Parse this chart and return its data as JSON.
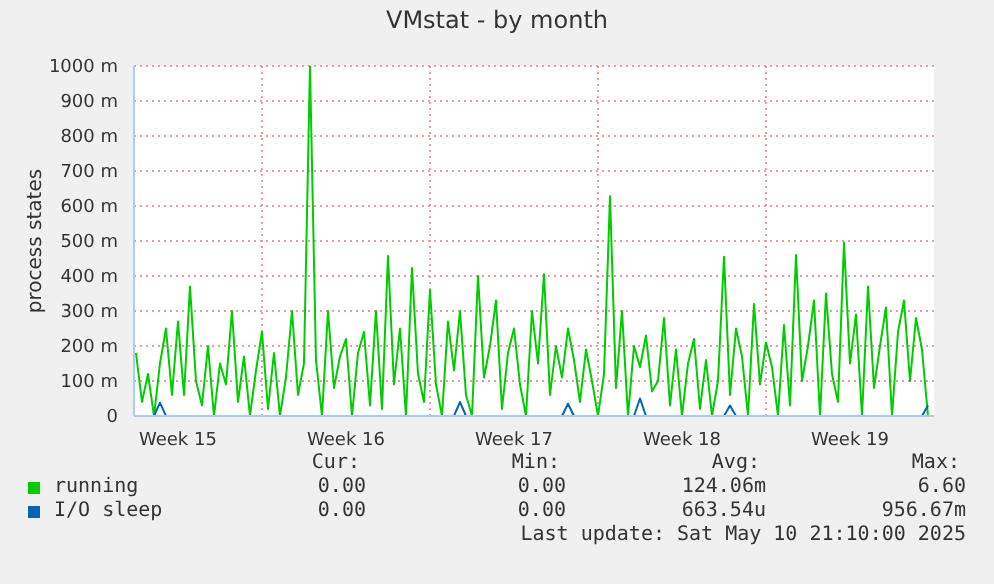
{
  "chart_data": {
    "type": "line",
    "title": "VMstat - by month",
    "ylabel": "process states",
    "categories": [
      null,
      null,
      null,
      null,
      null,
      null,
      null,
      "Week 15",
      null,
      null,
      null,
      null,
      null,
      null,
      null,
      null,
      null,
      null,
      null,
      null,
      null,
      null,
      null,
      null,
      null,
      null,
      null,
      null,
      null,
      null,
      null,
      null,
      null,
      null,
      null,
      "Week 16",
      null,
      null,
      null,
      null,
      null,
      null,
      null,
      null,
      null,
      null,
      null,
      null,
      null,
      null,
      null,
      null,
      null,
      null,
      null,
      null,
      null,
      null,
      null,
      null,
      null,
      null,
      null,
      "Week 17",
      null,
      null,
      null,
      null,
      null,
      null,
      null,
      null,
      null,
      null,
      null,
      null,
      null,
      null,
      null,
      null,
      null,
      null,
      null,
      null,
      null,
      null,
      null,
      null,
      null,
      null,
      null,
      "Week 18",
      null,
      null,
      null,
      null,
      null,
      null,
      null,
      null,
      null,
      null,
      null,
      null,
      null,
      null,
      null,
      null,
      null,
      null,
      null,
      null,
      null,
      null,
      null,
      null,
      null,
      null,
      null,
      "Week 19",
      null,
      null,
      null,
      null,
      null,
      null,
      null,
      null,
      null,
      null,
      null,
      null,
      null
    ],
    "series": [
      {
        "name": "running",
        "color": "#00cc00",
        "values": [
          180,
          40,
          120,
          0,
          150,
          250,
          60,
          270,
          60,
          370,
          100,
          30,
          200,
          0,
          150,
          90,
          300,
          40,
          170,
          0,
          130,
          240,
          20,
          180,
          0,
          110,
          300,
          60,
          150,
          1000,
          160,
          0,
          300,
          80,
          170,
          220,
          0,
          180,
          240,
          30,
          300,
          20,
          457,
          90,
          250,
          0,
          423,
          120,
          40,
          360,
          90,
          0,
          270,
          130,
          300,
          60,
          0,
          400,
          110,
          200,
          330,
          20,
          180,
          250,
          90,
          0,
          300,
          150,
          405,
          60,
          200,
          110,
          250,
          160,
          40,
          190,
          100,
          0,
          120,
          628,
          80,
          300,
          0,
          200,
          140,
          230,
          70,
          100,
          280,
          30,
          190,
          0,
          150,
          220,
          20,
          160,
          0,
          100,
          455,
          60,
          250,
          170,
          0,
          320,
          90,
          210,
          140,
          0,
          260,
          30,
          460,
          100,
          200,
          330,
          0,
          350,
          120,
          40,
          495,
          150,
          290,
          0,
          370,
          80,
          200,
          310,
          0,
          240,
          330,
          100,
          280,
          190,
          0
        ]
      },
      {
        "name": "I/O sleep",
        "color": "#0066b3",
        "values": [
          null,
          null,
          null,
          0,
          38,
          0,
          null,
          null,
          null,
          null,
          null,
          null,
          null,
          null,
          null,
          null,
          null,
          null,
          null,
          null,
          null,
          null,
          null,
          null,
          null,
          null,
          null,
          null,
          null,
          null,
          null,
          null,
          null,
          null,
          null,
          null,
          null,
          null,
          null,
          null,
          null,
          null,
          null,
          null,
          null,
          null,
          null,
          null,
          null,
          null,
          null,
          null,
          null,
          0,
          40,
          0,
          null,
          null,
          null,
          null,
          null,
          null,
          null,
          null,
          null,
          null,
          null,
          null,
          null,
          null,
          null,
          0,
          35,
          0,
          null,
          null,
          null,
          null,
          null,
          null,
          null,
          null,
          null,
          0,
          50,
          0,
          null,
          null,
          null,
          null,
          null,
          null,
          null,
          null,
          null,
          null,
          null,
          null,
          0,
          30,
          0,
          null,
          null,
          null,
          null,
          null,
          null,
          null,
          null,
          null,
          null,
          null,
          null,
          null,
          null,
          null,
          null,
          null,
          null,
          null,
          null,
          null,
          null,
          null,
          null,
          null,
          null,
          null,
          null,
          null,
          null,
          0,
          30
        ]
      }
    ],
    "ylim": [
      0,
      1000
    ],
    "yticks": [
      0,
      {
        "value": 100,
        "label": "100 m"
      },
      {
        "value": 200,
        "label": "200 m"
      },
      {
        "value": 300,
        "label": "300 m"
      },
      {
        "value": 400,
        "label": "400 m"
      },
      {
        "value": 500,
        "label": "500 m"
      },
      {
        "value": 600,
        "label": "600 m"
      },
      {
        "value": 700,
        "label": "700 m"
      },
      {
        "value": 800,
        "label": "800 m"
      },
      {
        "value": 900,
        "label": "900 m"
      },
      {
        "value": 1000,
        "label": "1000 m"
      }
    ],
    "grid": true,
    "legend": "bottom",
    "marker": "none",
    "line_style": "solid",
    "annotations": [
      "Cur:",
      "Min:",
      "Avg:",
      "Max:",
      "0.00",
      "0.00",
      "124.06m",
      "6.60",
      "0.00",
      "0.00",
      "663.54u",
      "956.67m",
      "Last update: Sat May 10 21:10:00 2025"
    ]
  }
}
